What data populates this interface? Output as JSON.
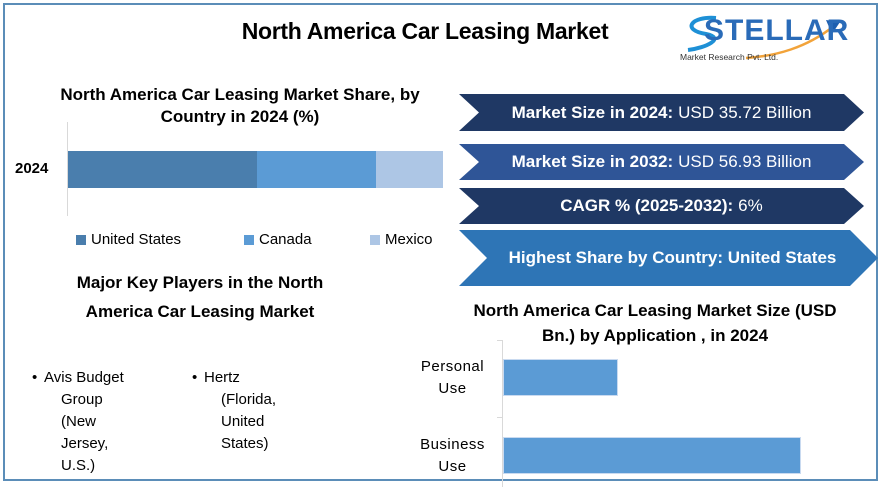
{
  "header": {
    "title": "North America Car Leasing Market",
    "logo": {
      "word": "STELLAR",
      "subtitle": "Market Research Pvt. Ltd."
    }
  },
  "share_chart": {
    "title_line1": "North America Car Leasing Market Share, by",
    "title_line2": "Country in 2024 (%)",
    "category": "2024",
    "legend": [
      "United States",
      "Canada",
      "Mexico"
    ]
  },
  "banners": [
    {
      "label": "Market Size in 2024:",
      "value": "USD 35.72 Billion",
      "color": "#1f3864"
    },
    {
      "label": "Market Size in 2032:",
      "value": "USD 56.93 Billion",
      "color": "#2f5597"
    },
    {
      "label": "CAGR % (2025-2032):",
      "value": "6%",
      "color": "#1f3864"
    },
    {
      "label": "Highest Share by Country: United States",
      "value": "",
      "color": "#2e75b6"
    }
  ],
  "key_players": {
    "title_line1": "Major Key Players in the North",
    "title_line2": "America Car Leasing Market",
    "items": [
      {
        "first": "Avis Budget",
        "rest": "Group (New Jersey, U.S.)"
      },
      {
        "first": "Hertz",
        "rest": "(Florida, United States)"
      }
    ]
  },
  "application_chart": {
    "title_line1": "North America Car Leasing Market Size (USD",
    "title_line2": "Bn.) by Application , in 2024",
    "categories": [
      {
        "line1": "Personal",
        "line2": "Use"
      },
      {
        "line1": "Business",
        "line2": "Use"
      }
    ]
  },
  "colors": {
    "us": "#4a7ead",
    "canada": "#5b9bd5",
    "mexico": "#adc6e5",
    "app_bar": "#5b9bd5",
    "frame": "#5b8db8"
  },
  "chart_data": [
    {
      "type": "bar",
      "orientation": "horizontal-stacked",
      "title": "North America Car Leasing Market Share, by Country in 2024 (%)",
      "categories": [
        "2024"
      ],
      "series": [
        {
          "name": "United States",
          "values": [
            50.4
          ]
        },
        {
          "name": "Canada",
          "values": [
            31.7
          ]
        },
        {
          "name": "Mexico",
          "values": [
            17.9
          ]
        }
      ],
      "xlabel": "",
      "ylabel": "",
      "xlim": [
        0,
        100
      ],
      "grid": false,
      "legend_position": "bottom"
    },
    {
      "type": "bar",
      "orientation": "horizontal",
      "title": "North America Car Leasing Market Size (USD Bn.) by Application , in 2024",
      "categories": [
        "Personal Use",
        "Business Use"
      ],
      "values": [
        9.93,
        25.79
      ],
      "xlabel": "",
      "ylabel": "",
      "xlim": [
        0,
        30
      ],
      "grid": false,
      "legend_position": "none"
    }
  ]
}
